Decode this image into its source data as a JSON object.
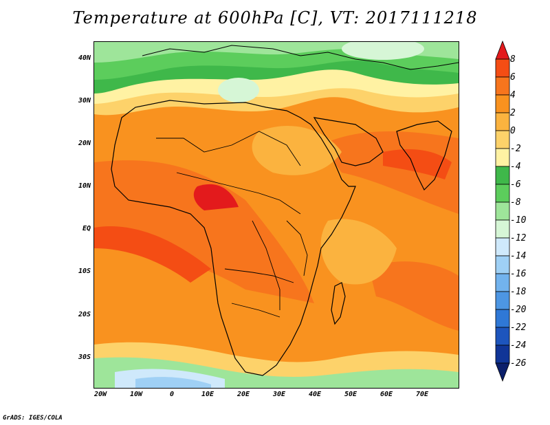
{
  "title": "Temperature at 600hPa [C], VT: 2017111218",
  "footer": "GrADS: IGES/COLA",
  "lat_labels": [
    "40N",
    "30N",
    "20N",
    "10N",
    "EQ",
    "10S",
    "20S",
    "30S"
  ],
  "lon_labels": [
    "20W",
    "10W",
    "0",
    "10E",
    "20E",
    "30E",
    "40E",
    "50E",
    "60E",
    "70E"
  ],
  "colorbar": {
    "levels": [
      "8",
      "6",
      "4",
      "2",
      "0",
      "-2",
      "-4",
      "-6",
      "-8",
      "-10",
      "-12",
      "-14",
      "-16",
      "-18",
      "-20",
      "-22",
      "-24",
      "-26"
    ],
    "colors": [
      "#e31a1c",
      "#f44d14",
      "#f7751d",
      "#f9921f",
      "#fbb33f",
      "#fdd26a",
      "#fff2a3",
      "#3fb84a",
      "#5ccd5c",
      "#9ee59a",
      "#d6f6d6",
      "#cfe9fb",
      "#9fd0f5",
      "#72b3ee",
      "#4d96e3",
      "#2f78d6",
      "#1d55bd",
      "#103597",
      "#0b1f6b"
    ]
  }
}
